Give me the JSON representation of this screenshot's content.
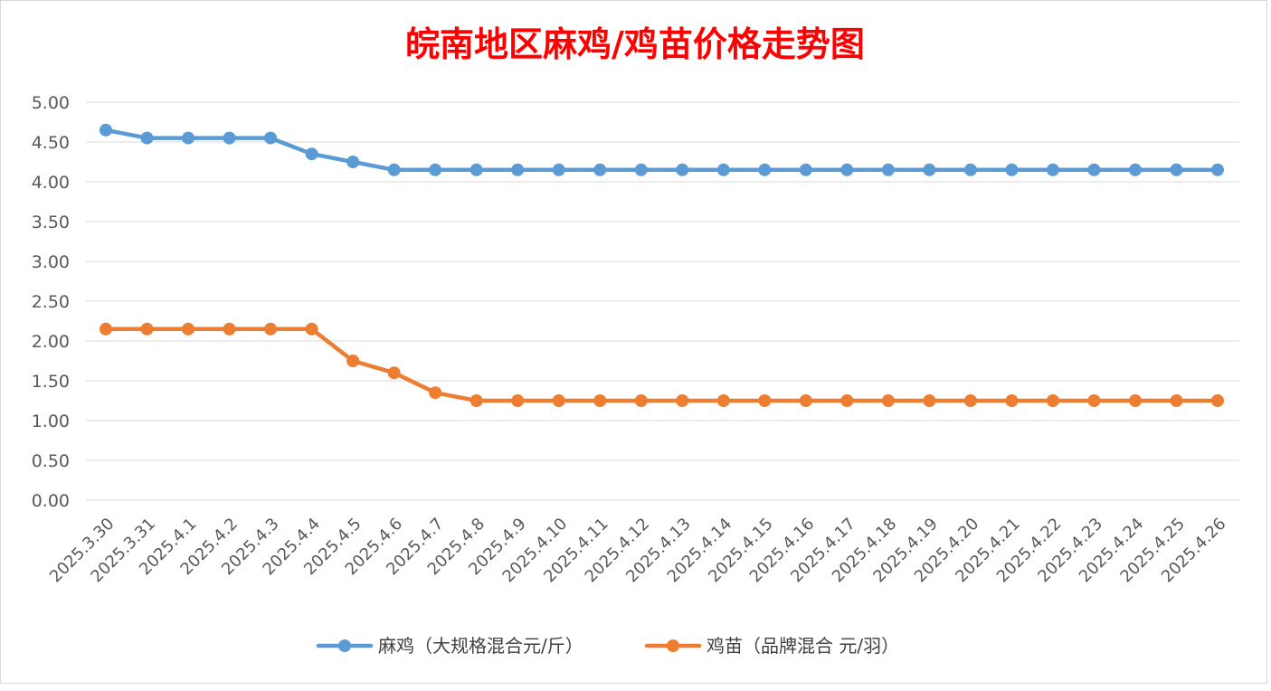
{
  "chart_data": {
    "type": "line",
    "title": "皖南地区麻鸡/鸡苗价格走势图",
    "categories": [
      "2025.3.30",
      "2025.3.31",
      "2025.4.1",
      "2025.4.2",
      "2025.4.3",
      "2025.4.4",
      "2025.4.5",
      "2025.4.6",
      "2025.4.7",
      "2025.4.8",
      "2025.4.9",
      "2025.4.10",
      "2025.4.11",
      "2025.4.12",
      "2025.4.13",
      "2025.4.14",
      "2025.4.15",
      "2025.4.16",
      "2025.4.17",
      "2025.4.18",
      "2025.4.19",
      "2025.4.20",
      "2025.4.21",
      "2025.4.22",
      "2025.4.23",
      "2025.4.24",
      "2025.4.25",
      "2025.4.26"
    ],
    "series": [
      {
        "name": "麻鸡（大规格混合元/斤）",
        "color": "#5b9bd5",
        "values": [
          4.65,
          4.55,
          4.55,
          4.55,
          4.55,
          4.35,
          4.25,
          4.15,
          4.15,
          4.15,
          4.15,
          4.15,
          4.15,
          4.15,
          4.15,
          4.15,
          4.15,
          4.15,
          4.15,
          4.15,
          4.15,
          4.15,
          4.15,
          4.15,
          4.15,
          4.15,
          4.15,
          4.15
        ]
      },
      {
        "name": "鸡苗（品牌混合 元/羽）",
        "color": "#ed7d31",
        "values": [
          2.15,
          2.15,
          2.15,
          2.15,
          2.15,
          2.15,
          1.75,
          1.6,
          1.35,
          1.25,
          1.25,
          1.25,
          1.25,
          1.25,
          1.25,
          1.25,
          1.25,
          1.25,
          1.25,
          1.25,
          1.25,
          1.25,
          1.25,
          1.25,
          1.25,
          1.25,
          1.25,
          1.25
        ]
      }
    ],
    "ylim": [
      0,
      5
    ],
    "yticks": [
      "0.00",
      "0.50",
      "1.00",
      "1.50",
      "2.00",
      "2.50",
      "3.00",
      "3.50",
      "4.00",
      "4.50",
      "5.00"
    ],
    "grid": true,
    "legend_position": "bottom"
  }
}
